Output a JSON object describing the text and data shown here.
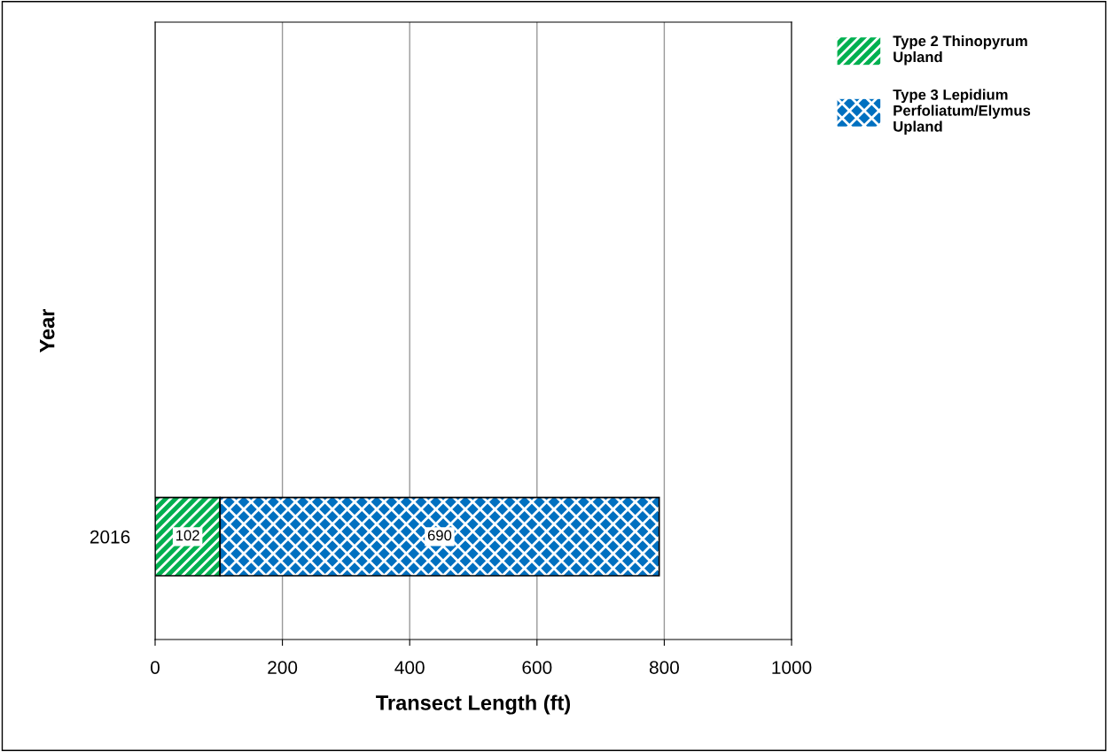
{
  "chart_data": {
    "type": "bar",
    "orientation": "horizontal",
    "stacked": true,
    "categories": [
      null,
      null,
      "2016"
    ],
    "series": [
      {
        "name": "Type 2 Thinopyrum Upland",
        "color": "#00b050",
        "values": [
          null,
          null,
          102
        ]
      },
      {
        "name": "Type 3 Lepidium Perfoliatum/Elymus Upland",
        "color": "#0070c0",
        "values": [
          null,
          null,
          690
        ]
      }
    ],
    "xlabel": "Transect Length (ft)",
    "ylabel": "Year",
    "xlim": [
      0,
      1000
    ],
    "xticks": [
      0,
      200,
      400,
      600,
      800,
      1000
    ],
    "grid": "x",
    "legend": "top right",
    "data_labels": true
  }
}
